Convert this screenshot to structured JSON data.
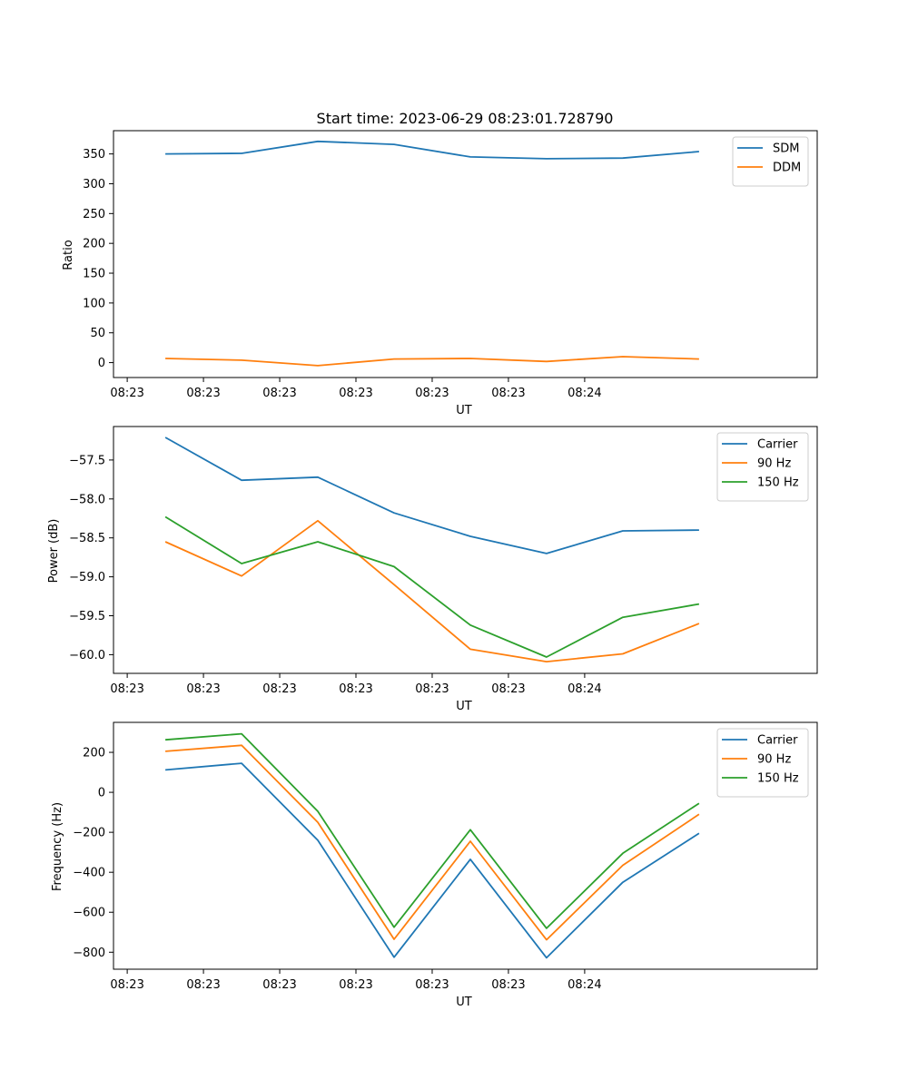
{
  "figure": {
    "title": "Start time: 2023-06-29 08:23:01.728790"
  },
  "colors": {
    "blue": "#1f77b4",
    "orange": "#ff7f0e",
    "green": "#2ca02c"
  },
  "chart_data": [
    {
      "type": "line",
      "title": "Start time: 2023-06-29 08:23:01.728790",
      "xlabel": "UT",
      "ylabel": "Ratio",
      "x_tick_labels": [
        "08:23",
        "08:23",
        "08:23",
        "08:23",
        "08:23",
        "08:23",
        "08:24"
      ],
      "x": [
        1,
        2,
        3,
        4,
        5,
        6,
        7,
        8
      ],
      "xlim": [
        0.32,
        9.55
      ],
      "ylim": [
        -25,
        389
      ],
      "yticks": [
        0,
        50,
        100,
        150,
        200,
        250,
        300,
        350
      ],
      "legend_position": "upper right",
      "series": [
        {
          "name": "SDM",
          "color": "#1f77b4",
          "values": [
            350,
            351,
            371,
            366,
            345,
            342,
            343,
            354
          ]
        },
        {
          "name": "DDM",
          "color": "#ff7f0e",
          "values": [
            7,
            4,
            -5,
            6,
            7,
            2,
            10,
            6
          ]
        }
      ]
    },
    {
      "type": "line",
      "xlabel": "UT",
      "ylabel": "Power (dB)",
      "x_tick_labels": [
        "08:23",
        "08:23",
        "08:23",
        "08:23",
        "08:23",
        "08:23",
        "08:24"
      ],
      "x": [
        1,
        2,
        3,
        4,
        5,
        6,
        7,
        8
      ],
      "xlim": [
        0.32,
        9.55
      ],
      "ylim": [
        -60.24,
        -57.07
      ],
      "yticks": [
        -60.0,
        -59.5,
        -59.0,
        -58.5,
        -58.0,
        -57.5
      ],
      "y_tick_labels": [
        "−60.0",
        "−59.5",
        "−59.0",
        "−58.5",
        "−58.0",
        "−57.5"
      ],
      "legend_position": "upper right",
      "series": [
        {
          "name": "Carrier",
          "color": "#1f77b4",
          "values": [
            -57.21,
            -57.76,
            -57.72,
            -58.18,
            -58.48,
            -58.7,
            -58.41,
            -58.4
          ]
        },
        {
          "name": "90 Hz",
          "color": "#ff7f0e",
          "values": [
            -58.55,
            -58.99,
            -58.28,
            -59.1,
            -59.93,
            -60.09,
            -59.99,
            -59.6
          ]
        },
        {
          "name": "150 Hz",
          "color": "#2ca02c",
          "values": [
            -58.23,
            -58.83,
            -58.55,
            -58.87,
            -59.62,
            -60.03,
            -59.52,
            -59.35
          ]
        }
      ]
    },
    {
      "type": "line",
      "xlabel": "UT",
      "ylabel": "Frequency (Hz)",
      "x_tick_labels": [
        "08:23",
        "08:23",
        "08:23",
        "08:23",
        "08:23",
        "08:23",
        "08:24"
      ],
      "x": [
        1,
        2,
        3,
        4,
        5,
        6,
        7,
        8
      ],
      "xlim": [
        0.32,
        9.55
      ],
      "ylim": [
        -885,
        350
      ],
      "yticks": [
        -800,
        -600,
        -400,
        -200,
        0,
        200
      ],
      "y_tick_labels": [
        "−800",
        "−600",
        "−400",
        "−200",
        "0",
        "200"
      ],
      "legend_position": "upper right",
      "series": [
        {
          "name": "Carrier",
          "color": "#1f77b4",
          "values": [
            112,
            145,
            -240,
            -825,
            -335,
            -828,
            -450,
            -205
          ]
        },
        {
          "name": "90 Hz",
          "color": "#ff7f0e",
          "values": [
            205,
            235,
            -150,
            -735,
            -245,
            -738,
            -365,
            -110
          ]
        },
        {
          "name": "150 Hz",
          "color": "#2ca02c",
          "values": [
            263,
            293,
            -95,
            -675,
            -187,
            -680,
            -305,
            -55
          ]
        }
      ]
    }
  ]
}
